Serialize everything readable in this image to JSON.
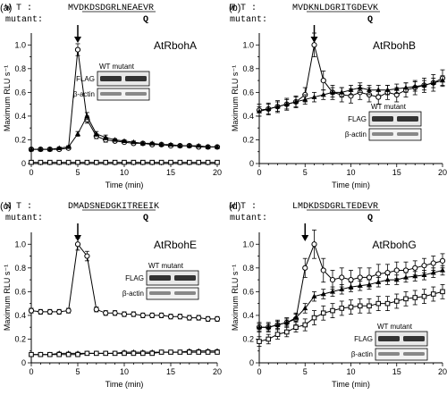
{
  "figure": {
    "x_ticks": [
      "0",
      "5",
      "10",
      "15",
      "20"
    ],
    "y_ticks": [
      "0",
      "0.2",
      "0.4",
      "0.6",
      "0.8",
      "1.0"
    ],
    "blot_wt_mutant": "WT mutant",
    "blot_flag": "FLAG",
    "blot_actin": "β-actin"
  },
  "chart_data": [
    {
      "type": "line",
      "panel": "(a)",
      "title": "AtRbohA",
      "wt_prefix": "W T :",
      "wt_seq": "MVDKDSDGRLNEAEVR",
      "mutant_prefix": "mutant:",
      "mutant_residue": "Q",
      "xlabel": "Time (min)",
      "ylabel": "Maximum RLU s⁻¹",
      "xlim": [
        0,
        20
      ],
      "ylim": [
        0,
        1.1
      ],
      "arrow_x": 5,
      "x": [
        0,
        1,
        2,
        3,
        4,
        5,
        6,
        7,
        8,
        9,
        10,
        11,
        12,
        13,
        14,
        15,
        16,
        17,
        18,
        19,
        20
      ],
      "series": [
        {
          "marker": "open-circle",
          "values": [
            0.12,
            0.12,
            0.12,
            0.12,
            0.13,
            0.96,
            0.37,
            0.23,
            0.2,
            0.19,
            0.18,
            0.17,
            0.17,
            0.16,
            0.16,
            0.15,
            0.15,
            0.15,
            0.14,
            0.14,
            0.14
          ],
          "errors": [
            0.01,
            0.01,
            0.01,
            0.01,
            0.01,
            0.05,
            0.03,
            0.02,
            0.02,
            0.01,
            0.01,
            0.01,
            0.01,
            0.01,
            0.01,
            0.01,
            0.01,
            0.01,
            0.01,
            0.01,
            0.01
          ]
        },
        {
          "marker": "filled-triangle",
          "values": [
            0.12,
            0.12,
            0.12,
            0.13,
            0.14,
            0.25,
            0.4,
            0.25,
            0.22,
            0.2,
            0.19,
            0.18,
            0.17,
            0.17,
            0.16,
            0.16,
            0.15,
            0.15,
            0.15,
            0.14,
            0.14
          ],
          "errors": [
            0.01,
            0.01,
            0.01,
            0.01,
            0.01,
            0.02,
            0.03,
            0.02,
            0.02,
            0.01,
            0.01,
            0.01,
            0.01,
            0.01,
            0.01,
            0.01,
            0.01,
            0.01,
            0.01,
            0.01,
            0.01
          ]
        },
        {
          "marker": "open-square",
          "values": [
            0.01,
            0.01,
            0.01,
            0.01,
            0.01,
            0.01,
            0.01,
            0.01,
            0.01,
            0.01,
            0.01,
            0.01,
            0.01,
            0.01,
            0.01,
            0.01,
            0.01,
            0.01,
            0.01,
            0.01,
            0.01
          ],
          "errors": [
            0.005,
            0.005,
            0.005,
            0.005,
            0.005,
            0.005,
            0.005,
            0.005,
            0.005,
            0.005,
            0.005,
            0.005,
            0.005,
            0.005,
            0.005,
            0.005,
            0.005,
            0.005,
            0.005,
            0.005,
            0.005
          ]
        }
      ]
    },
    {
      "type": "line",
      "panel": "(b)",
      "title": "AtRbohB",
      "wt_prefix": "W T :",
      "wt_seq": "MVDKNLDGRITGDEVK",
      "mutant_prefix": "mutant:",
      "mutant_residue": "Q",
      "xlabel": "Time (min)",
      "ylabel": "Maximum RLU s⁻¹",
      "xlim": [
        0,
        20
      ],
      "ylim": [
        0,
        1.1
      ],
      "arrow_x": 6,
      "x": [
        0,
        1,
        2,
        3,
        4,
        5,
        6,
        7,
        8,
        9,
        10,
        11,
        12,
        13,
        14,
        15,
        16,
        17,
        18,
        19,
        20
      ],
      "series": [
        {
          "marker": "open-circle",
          "values": [
            0.45,
            0.46,
            0.48,
            0.5,
            0.52,
            0.58,
            1.0,
            0.7,
            0.6,
            0.58,
            0.57,
            0.6,
            0.58,
            0.56,
            0.6,
            0.58,
            0.62,
            0.64,
            0.66,
            0.68,
            0.72
          ],
          "errors": [
            0.05,
            0.05,
            0.05,
            0.05,
            0.05,
            0.06,
            0.1,
            0.08,
            0.06,
            0.06,
            0.06,
            0.06,
            0.06,
            0.06,
            0.06,
            0.06,
            0.06,
            0.06,
            0.06,
            0.07,
            0.07
          ]
        },
        {
          "marker": "filled-triangle",
          "values": [
            0.44,
            0.46,
            0.48,
            0.5,
            0.52,
            0.54,
            0.56,
            0.58,
            0.6,
            0.6,
            0.62,
            0.64,
            0.62,
            0.62,
            0.62,
            0.63,
            0.64,
            0.65,
            0.66,
            0.68,
            0.7
          ],
          "errors": [
            0.04,
            0.04,
            0.04,
            0.04,
            0.04,
            0.04,
            0.04,
            0.04,
            0.04,
            0.04,
            0.04,
            0.04,
            0.04,
            0.04,
            0.04,
            0.04,
            0.04,
            0.04,
            0.04,
            0.04,
            0.04
          ]
        }
      ]
    },
    {
      "type": "line",
      "panel": "(c)",
      "title": "AtRbohE",
      "wt_prefix": "W T :",
      "wt_seq": "DMADSNEDGKITREEIK",
      "mutant_prefix": "mutant:",
      "mutant_residue": "Q",
      "xlabel": "Time (min)",
      "ylabel": "Maximum RLU s⁻¹",
      "xlim": [
        0,
        20
      ],
      "ylim": [
        0,
        1.1
      ],
      "arrow_x": 5,
      "x": [
        0,
        1,
        2,
        3,
        4,
        5,
        6,
        7,
        8,
        9,
        10,
        11,
        12,
        13,
        14,
        15,
        16,
        17,
        18,
        19,
        20
      ],
      "series": [
        {
          "marker": "open-circle",
          "values": [
            0.44,
            0.43,
            0.43,
            0.43,
            0.44,
            1.0,
            0.9,
            0.45,
            0.42,
            0.42,
            0.41,
            0.41,
            0.4,
            0.4,
            0.4,
            0.39,
            0.39,
            0.38,
            0.38,
            0.37,
            0.37
          ],
          "errors": [
            0.02,
            0.02,
            0.02,
            0.02,
            0.02,
            0.05,
            0.04,
            0.02,
            0.02,
            0.02,
            0.02,
            0.02,
            0.02,
            0.02,
            0.02,
            0.02,
            0.02,
            0.02,
            0.02,
            0.02,
            0.02
          ]
        },
        {
          "marker": "filled-triangle",
          "values": [
            0.07,
            0.07,
            0.07,
            0.08,
            0.08,
            0.08,
            0.08,
            0.08,
            0.08,
            0.08,
            0.09,
            0.09,
            0.09,
            0.09,
            0.09,
            0.09,
            0.09,
            0.1,
            0.1,
            0.1,
            0.1
          ],
          "errors": [
            0.01,
            0.01,
            0.01,
            0.01,
            0.01,
            0.01,
            0.01,
            0.01,
            0.01,
            0.01,
            0.01,
            0.01,
            0.01,
            0.01,
            0.01,
            0.01,
            0.01,
            0.01,
            0.01,
            0.01,
            0.01
          ]
        },
        {
          "marker": "open-square",
          "values": [
            0.07,
            0.07,
            0.07,
            0.07,
            0.07,
            0.07,
            0.08,
            0.08,
            0.08,
            0.08,
            0.08,
            0.08,
            0.08,
            0.08,
            0.09,
            0.09,
            0.09,
            0.09,
            0.09,
            0.09,
            0.09
          ],
          "errors": [
            0.01,
            0.01,
            0.01,
            0.01,
            0.01,
            0.01,
            0.01,
            0.01,
            0.01,
            0.01,
            0.01,
            0.01,
            0.01,
            0.01,
            0.01,
            0.01,
            0.01,
            0.01,
            0.01,
            0.01,
            0.01
          ]
        }
      ]
    },
    {
      "type": "line",
      "panel": "(d)",
      "title": "AtRbohG",
      "wt_prefix": "W T :",
      "wt_seq": "LMDKDSDGRLTEDEVR",
      "mutant_prefix": "mutant:",
      "mutant_residue": "Q",
      "xlabel": "Time (min)",
      "ylabel": "Maximum RLU s⁻¹",
      "xlim": [
        0,
        20
      ],
      "ylim": [
        0,
        1.1
      ],
      "arrow_x": 5,
      "x": [
        0,
        1,
        2,
        3,
        4,
        5,
        6,
        7,
        8,
        9,
        10,
        11,
        12,
        13,
        14,
        15,
        16,
        17,
        18,
        19,
        20
      ],
      "series": [
        {
          "marker": "open-circle",
          "values": [
            0.3,
            0.3,
            0.32,
            0.34,
            0.37,
            0.8,
            1.0,
            0.78,
            0.7,
            0.72,
            0.7,
            0.72,
            0.72,
            0.75,
            0.76,
            0.78,
            0.78,
            0.8,
            0.82,
            0.84,
            0.86
          ],
          "errors": [
            0.04,
            0.04,
            0.04,
            0.04,
            0.05,
            0.08,
            0.12,
            0.1,
            0.08,
            0.08,
            0.08,
            0.08,
            0.08,
            0.08,
            0.07,
            0.07,
            0.07,
            0.06,
            0.06,
            0.06,
            0.06
          ]
        },
        {
          "marker": "filled-triangle",
          "values": [
            0.3,
            0.3,
            0.32,
            0.34,
            0.38,
            0.46,
            0.56,
            0.58,
            0.6,
            0.62,
            0.64,
            0.65,
            0.66,
            0.68,
            0.7,
            0.7,
            0.72,
            0.73,
            0.74,
            0.76,
            0.78
          ],
          "errors": [
            0.03,
            0.03,
            0.03,
            0.03,
            0.03,
            0.04,
            0.04,
            0.04,
            0.04,
            0.04,
            0.04,
            0.04,
            0.04,
            0.04,
            0.04,
            0.04,
            0.04,
            0.04,
            0.04,
            0.04,
            0.04
          ]
        },
        {
          "marker": "open-square",
          "values": [
            0.18,
            0.2,
            0.24,
            0.26,
            0.3,
            0.32,
            0.38,
            0.42,
            0.44,
            0.46,
            0.47,
            0.48,
            0.48,
            0.5,
            0.5,
            0.52,
            0.54,
            0.55,
            0.56,
            0.58,
            0.6
          ],
          "errors": [
            0.04,
            0.04,
            0.04,
            0.04,
            0.04,
            0.05,
            0.06,
            0.06,
            0.06,
            0.06,
            0.06,
            0.06,
            0.06,
            0.06,
            0.06,
            0.06,
            0.06,
            0.06,
            0.06,
            0.06,
            0.06
          ]
        }
      ]
    }
  ]
}
